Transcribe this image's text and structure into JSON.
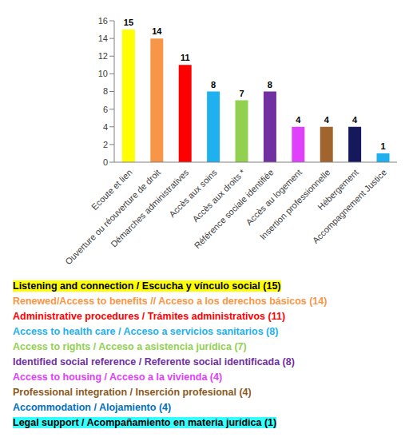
{
  "chart_data": {
    "type": "bar",
    "categories": [
      "Ecoute et lien",
      "Ouverture ou réouverture de droit",
      "Démarches administratives",
      "Accès aux soins",
      "Accès aux droits *",
      "Référence sociale identifiée",
      "Accès au logement",
      "Insertion professionnelle",
      "Hébergement",
      "Accompagnement Justice"
    ],
    "values": [
      15,
      14,
      11,
      8,
      7,
      8,
      4,
      4,
      4,
      1
    ],
    "colors": [
      "#ffff00",
      "#f79646",
      "#ff0000",
      "#1fb0f0",
      "#92d050",
      "#7030a0",
      "#e040fb",
      "#a0642c",
      "#15195c",
      "#1fb0f0"
    ],
    "ylim": [
      0,
      16
    ],
    "yticks": [
      0,
      2,
      4,
      6,
      8,
      10,
      12,
      14,
      16
    ],
    "grid": false,
    "data_labels": true,
    "annotations": [
      {
        "text": "Listening and connection / Escucha y vínculo social (15)",
        "color": "#000000",
        "background": "#ffff00"
      },
      {
        "text": "Renewed/Access to benefits // Acceso a los derechos básicos (14)",
        "color": "#f79646"
      },
      {
        "text": "Administrative procedures / Trámites administrativos (11)",
        "color": "#ff0000"
      },
      {
        "text": "Access to health care / Acceso a servicios sanitarios (8)",
        "color": "#1fb0f0"
      },
      {
        "text": "Access to rights / Acceso a asistencia jurídica (7)",
        "color": "#92d050"
      },
      {
        "text": "Identified social reference / Referente social identificada (8)",
        "color": "#7030a0"
      },
      {
        "text": "Access to housing / Acceso a la vivienda (4)",
        "color": "#e040fb"
      },
      {
        "text": "Professional integration / Inserción profesional (4)",
        "color": "#8a5a1e"
      },
      {
        "text": "Accommodation / Alojamiento (4)",
        "color": "#0070c0"
      },
      {
        "text": "Legal support / Acompañamiento en materia jurídica (1)",
        "color": "#000000",
        "background": "#33ffff"
      }
    ]
  }
}
